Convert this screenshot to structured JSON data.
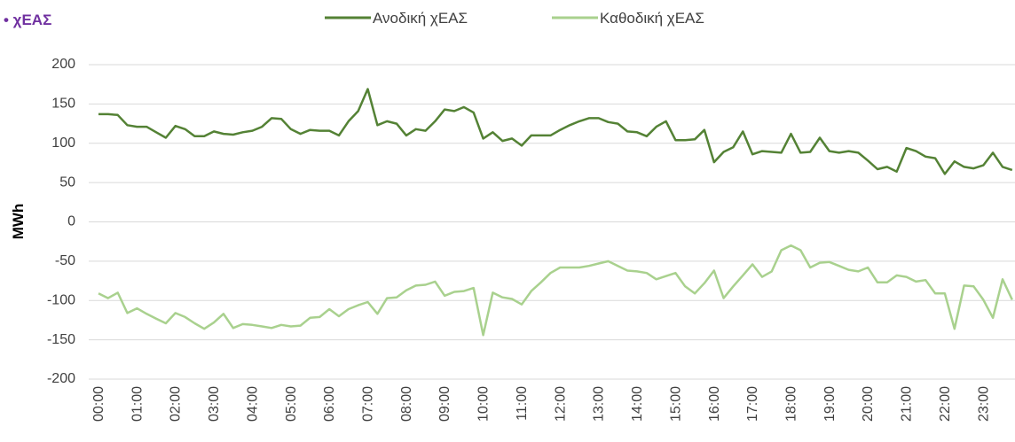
{
  "chart_data": {
    "type": "line",
    "title": "• χΕΑΣ",
    "y_label": "MWh",
    "categories": [
      "00:00",
      null,
      null,
      null,
      "01:00",
      null,
      null,
      null,
      "02:00",
      null,
      null,
      null,
      "03:00",
      null,
      null,
      null,
      "04:00",
      null,
      null,
      null,
      "05:00",
      null,
      null,
      null,
      "06:00",
      null,
      null,
      null,
      "07:00",
      null,
      null,
      null,
      "08:00",
      null,
      null,
      null,
      "09:00",
      null,
      null,
      null,
      "10:00",
      null,
      null,
      null,
      "11:00",
      null,
      null,
      null,
      "12:00",
      null,
      null,
      null,
      "13:00",
      null,
      null,
      null,
      "14:00",
      null,
      null,
      null,
      "15:00",
      null,
      null,
      null,
      "16:00",
      null,
      null,
      null,
      "17:00",
      null,
      null,
      null,
      "18:00",
      null,
      null,
      null,
      "19:00",
      null,
      null,
      null,
      "20:00",
      null,
      null,
      null,
      "21:00",
      null,
      null,
      null,
      "22:00",
      null,
      null,
      null,
      "23:00",
      null,
      null,
      null
    ],
    "series": [
      {
        "name": "Ανοδική χΕΑΣ",
        "color": "#548235",
        "values": [
          137,
          137,
          136,
          123,
          121,
          121,
          114,
          107,
          122,
          118,
          109,
          109,
          115,
          112,
          111,
          114,
          116,
          121,
          132,
          131,
          118,
          112,
          117,
          116,
          116,
          110,
          128,
          141,
          169,
          123,
          128,
          125,
          110,
          118,
          116,
          128,
          143,
          141,
          146,
          139,
          106,
          114,
          103,
          106,
          97,
          110,
          110,
          110,
          117,
          123,
          128,
          132,
          132,
          127,
          125,
          115,
          114,
          109,
          121,
          128,
          104,
          104,
          105,
          117,
          76,
          89,
          95,
          115,
          86,
          90,
          89,
          88,
          112,
          88,
          89,
          107,
          90,
          88,
          90,
          88,
          78,
          67,
          70,
          64,
          94,
          90,
          83,
          81,
          61,
          77,
          70,
          68,
          72,
          88,
          70,
          66
        ]
      },
      {
        "name": "Καθοδική χΕΑΣ",
        "color": "#a9d18e",
        "values": [
          -91,
          -97,
          -90,
          -116,
          -110,
          -117,
          -123,
          -129,
          -116,
          -121,
          -129,
          -136,
          -128,
          -117,
          -135,
          -130,
          -131,
          -133,
          -135,
          -131,
          -133,
          -132,
          -122,
          -121,
          -111,
          -120,
          -111,
          -106,
          -102,
          -117,
          -97,
          -96,
          -87,
          -81,
          -80,
          -76,
          -94,
          -89,
          -88,
          -84,
          -144,
          -90,
          -96,
          -98,
          -105,
          -88,
          -77,
          -65,
          -58,
          -58,
          -58,
          -56,
          -53,
          -50,
          -56,
          -62,
          -63,
          -65,
          -73,
          -69,
          -65,
          -82,
          -91,
          -78,
          -62,
          -97,
          -82,
          -68,
          -54,
          -70,
          -63,
          -36,
          -30,
          -36,
          -58,
          -52,
          -51,
          -56,
          -61,
          -63,
          -58,
          -77,
          -77,
          -68,
          -70,
          -76,
          -74,
          -91,
          -91,
          -136,
          -81,
          -82,
          -99,
          -122,
          -73,
          -99
        ]
      }
    ],
    "ylim": [
      -200,
      200
    ],
    "yticks": [
      -200,
      -150,
      -100,
      -50,
      0,
      50,
      100,
      150,
      200
    ],
    "grid": true,
    "legend": "top"
  }
}
